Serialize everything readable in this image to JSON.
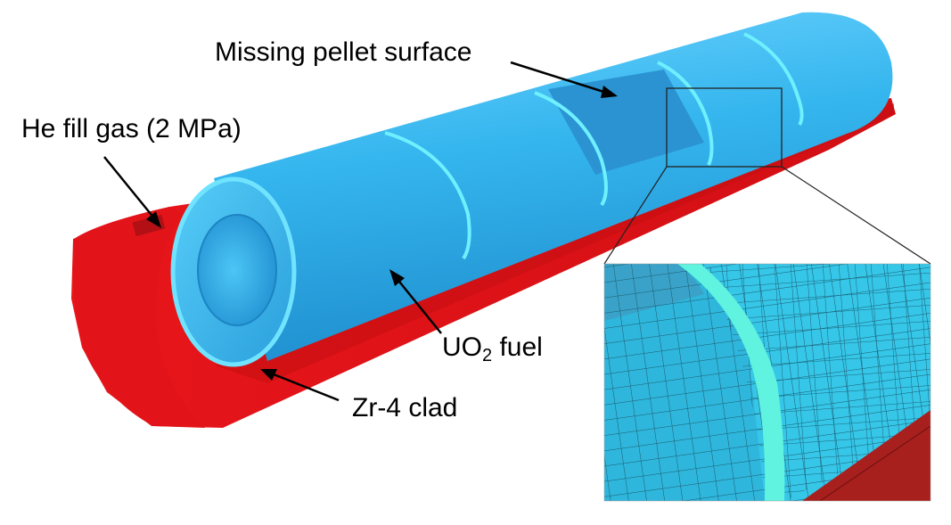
{
  "labels": {
    "missing_pellet_surface": "Missing pellet surface",
    "he_fill_gas": "He fill gas (2 MPa)",
    "uo2_fuel_prefix": "UO",
    "uo2_fuel_subscript": "2",
    "uo2_fuel_suffix": " fuel",
    "zr4_clad": "Zr-4 clad"
  },
  "colors": {
    "fuel": "#2fb1ec",
    "fuel_highlight": "#5fe6ff",
    "missing_surface": "#2a95d4",
    "clad": "#e8161b",
    "clad_dark": "#c40e12",
    "mesh_line": "#1b5a6e"
  }
}
